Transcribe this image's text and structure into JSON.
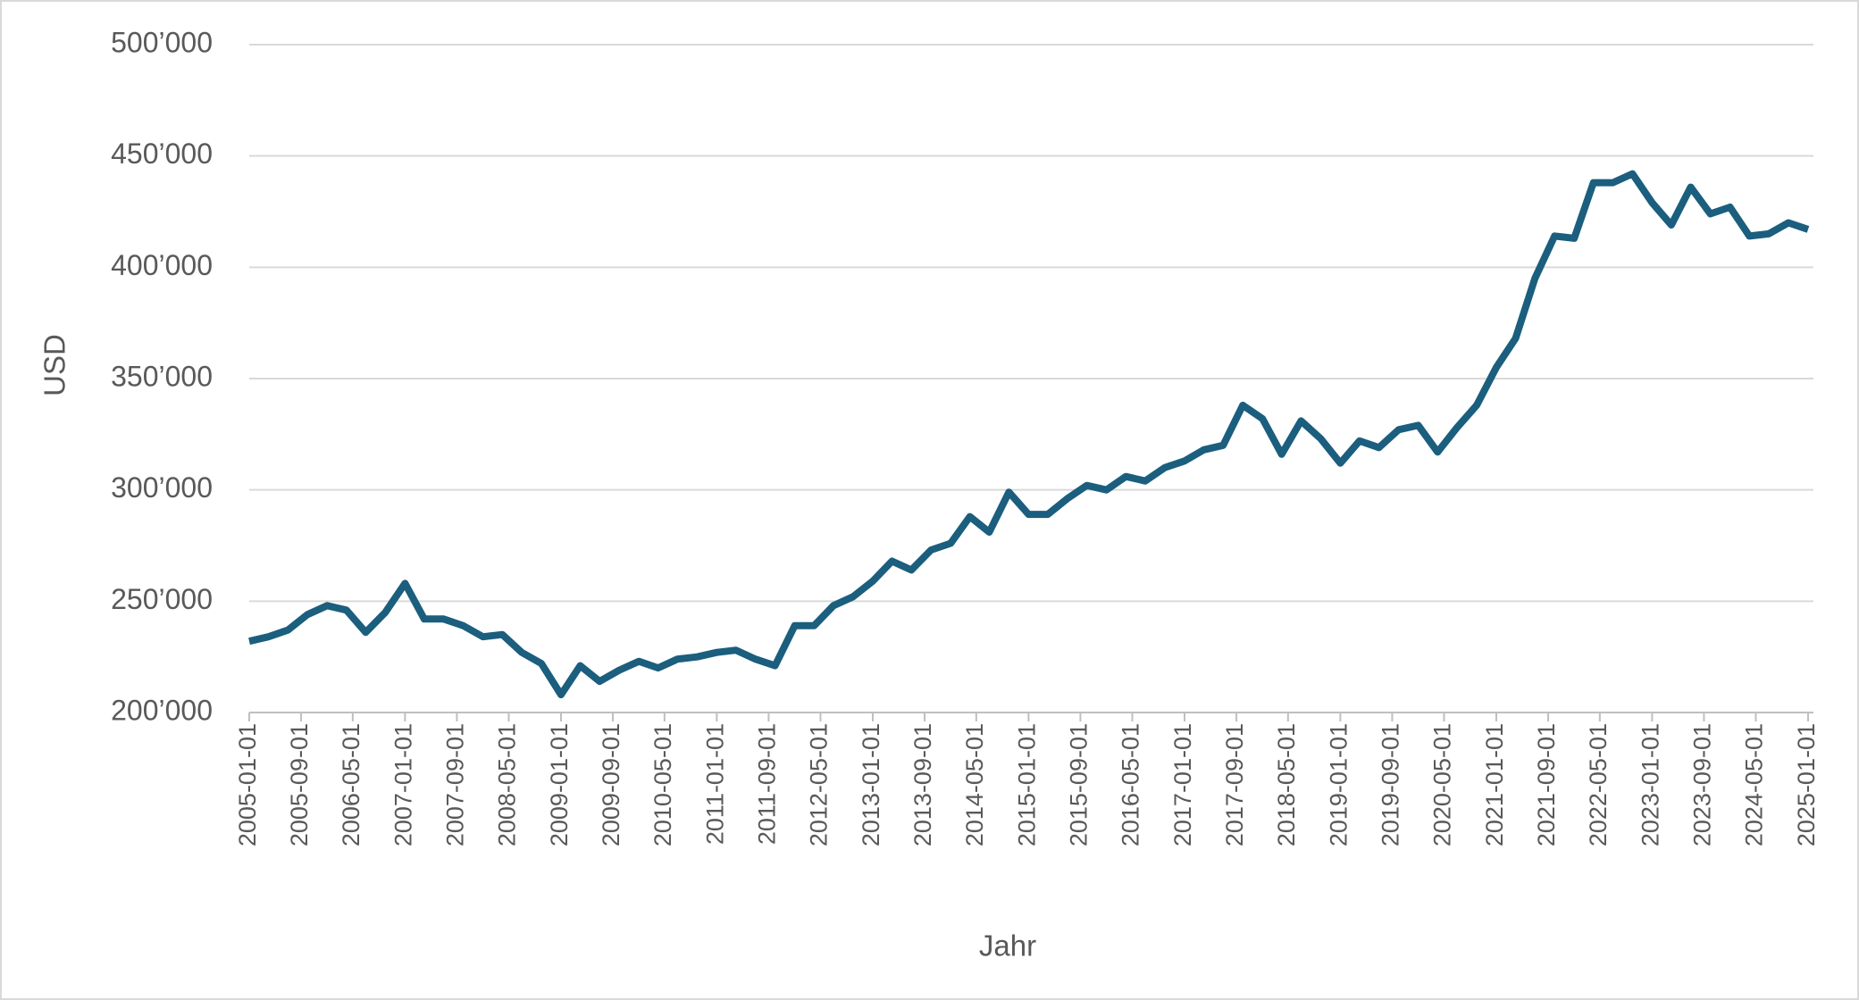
{
  "chart_data": {
    "type": "line",
    "x_label": "Jahr",
    "y_label": "USD",
    "x": [
      "2005-01-01",
      "2005-04-01",
      "2005-07-01",
      "2005-10-01",
      "2006-01-01",
      "2006-04-01",
      "2006-07-01",
      "2006-10-01",
      "2007-01-01",
      "2007-04-01",
      "2007-07-01",
      "2007-10-01",
      "2008-01-01",
      "2008-04-01",
      "2008-07-01",
      "2008-10-01",
      "2009-01-01",
      "2009-04-01",
      "2009-07-01",
      "2009-10-01",
      "2010-01-01",
      "2010-04-01",
      "2010-07-01",
      "2010-10-01",
      "2011-01-01",
      "2011-04-01",
      "2011-07-01",
      "2011-10-01",
      "2012-01-01",
      "2012-04-01",
      "2012-07-01",
      "2012-10-01",
      "2013-01-01",
      "2013-04-01",
      "2013-07-01",
      "2013-10-01",
      "2014-01-01",
      "2014-04-01",
      "2014-07-01",
      "2014-10-01",
      "2015-01-01",
      "2015-04-01",
      "2015-07-01",
      "2015-10-01",
      "2016-01-01",
      "2016-04-01",
      "2016-07-01",
      "2016-10-01",
      "2017-01-01",
      "2017-04-01",
      "2017-07-01",
      "2017-10-01",
      "2018-01-01",
      "2018-04-01",
      "2018-07-01",
      "2018-10-01",
      "2019-01-01",
      "2019-04-01",
      "2019-07-01",
      "2019-10-01",
      "2020-01-01",
      "2020-04-01",
      "2020-07-01",
      "2020-10-01",
      "2021-01-01",
      "2021-04-01",
      "2021-07-01",
      "2021-10-01",
      "2022-01-01",
      "2022-04-01",
      "2022-07-01",
      "2022-10-01",
      "2023-01-01",
      "2023-04-01",
      "2023-07-01",
      "2023-10-01",
      "2024-01-01",
      "2024-04-01",
      "2024-07-01",
      "2024-10-01",
      "2025-01-01"
    ],
    "series": [
      {
        "color": "#1b5e7e",
        "values": [
          232000,
          234000,
          237000,
          244000,
          248000,
          246000,
          236000,
          245000,
          258000,
          242000,
          242000,
          239000,
          234000,
          235000,
          227000,
          222000,
          208000,
          221000,
          214000,
          219000,
          223000,
          220000,
          224000,
          225000,
          227000,
          228000,
          224000,
          221000,
          239000,
          239000,
          248000,
          252000,
          259000,
          268000,
          264000,
          273000,
          276000,
          288000,
          281000,
          299000,
          289000,
          289000,
          296000,
          302000,
          300000,
          306000,
          304000,
          310000,
          313000,
          318000,
          320000,
          338000,
          332000,
          316000,
          331000,
          323000,
          312000,
          322000,
          319000,
          327000,
          329000,
          317000,
          328000,
          338000,
          355000,
          368000,
          395000,
          414000,
          413000,
          438000,
          438000,
          442000,
          429000,
          419000,
          436000,
          424000,
          427000,
          414000,
          415000,
          420000,
          417000
        ]
      }
    ],
    "xlim": [
      "2005-01-01",
      "2025-01-01"
    ],
    "xticks": [
      "2005-01-01",
      "2005-09-01",
      "2006-05-01",
      "2007-01-01",
      "2007-09-01",
      "2008-05-01",
      "2009-01-01",
      "2009-09-01",
      "2010-05-01",
      "2011-01-01",
      "2011-09-01",
      "2012-05-01",
      "2013-01-01",
      "2013-09-01",
      "2014-05-01",
      "2015-01-01",
      "2015-09-01",
      "2016-05-01",
      "2017-01-01",
      "2017-09-01",
      "2018-05-01",
      "2019-01-01",
      "2019-09-01",
      "2020-05-01",
      "2021-01-01",
      "2021-09-01",
      "2022-05-01",
      "2023-01-01",
      "2023-09-01",
      "2024-05-01",
      "2025-01-01"
    ],
    "ylim": [
      200000,
      500000
    ],
    "yticks": [
      {
        "value": 200000,
        "label": "200’000"
      },
      {
        "value": 250000,
        "label": "250’000"
      },
      {
        "value": 300000,
        "label": "300’000"
      },
      {
        "value": 350000,
        "label": "350’000"
      },
      {
        "value": 400000,
        "label": "400’000"
      },
      {
        "value": 450000,
        "label": "450’000"
      },
      {
        "value": 500000,
        "label": "500’000"
      }
    ],
    "grid": true
  }
}
